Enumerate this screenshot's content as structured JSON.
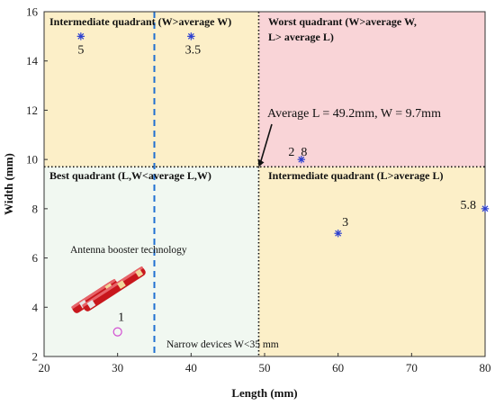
{
  "chart_data": {
    "type": "scatter",
    "xlabel": "Length (mm)",
    "ylabel": "Width (mm)",
    "xlim": [
      20,
      80
    ],
    "ylim": [
      2,
      16
    ],
    "x_ticks": [
      20,
      30,
      40,
      50,
      60,
      70,
      80
    ],
    "y_ticks": [
      2,
      4,
      6,
      8,
      10,
      12,
      14,
      16
    ],
    "grid": false,
    "average": {
      "length": 49.2,
      "width": 9.7,
      "text": "Average L = 49.2mm, W = 9.7mm"
    },
    "narrow_limit": {
      "x": 35,
      "text": "Narrow devices  W<35 mm"
    },
    "quadrants": [
      {
        "name": "best",
        "label": "Best quadrant (L,W<average L,W)",
        "color": "#f1f8f1"
      },
      {
        "name": "intermediate-top",
        "label": "Intermediate quadrant (W>average W)",
        "color": "#fcefc8"
      },
      {
        "name": "worst",
        "label_line1": "Worst quadrant (W>average W,",
        "label_line2": "L> average L)",
        "color": "#f9d4d7"
      },
      {
        "name": "intermediate-right",
        "label": "Intermediate quadrant (L>average L)",
        "color": "#fcefc8"
      }
    ],
    "points": [
      {
        "x": 25,
        "y": 15,
        "label": "5",
        "marker": "star"
      },
      {
        "x": 40,
        "y": 15,
        "label": "3.5",
        "marker": "star"
      },
      {
        "x": 55,
        "y": 10,
        "label": "2  8",
        "marker": "star"
      },
      {
        "x": 60,
        "y": 7,
        "label": "3",
        "marker": "star"
      },
      {
        "x": 80,
        "y": 8,
        "label": "5.8",
        "marker": "star"
      },
      {
        "x": 30,
        "y": 3,
        "label": "1",
        "marker": "circle"
      }
    ],
    "technology_label": "Antenna booster  technology",
    "colors": {
      "star": "#2b3fd0",
      "circle": "#d24fd2",
      "dash": "#1f6fd1",
      "axis": "#333333"
    }
  }
}
